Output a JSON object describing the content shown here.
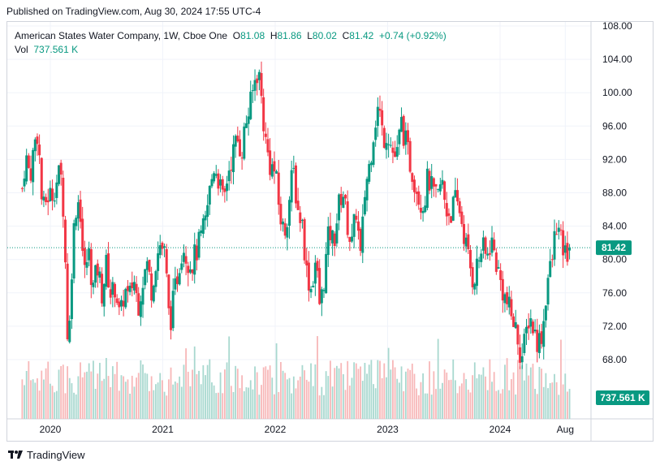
{
  "header": {
    "published": "Published on TradingView.com, Aug 30, 2024 17:55 UTC-4"
  },
  "legend": {
    "symbol": "American States Water Company, 1W, Cboe One",
    "o_label": "O",
    "o": "81.08",
    "h_label": "H",
    "h": "81.86",
    "l_label": "L",
    "l": "80.02",
    "c_label": "C",
    "c": "81.42",
    "change": "+0.74 (+0.92%)",
    "vol_label": "Vol",
    "vol": "737.561 K"
  },
  "footer": {
    "brand": "TradingView"
  },
  "colors": {
    "up": "#089981",
    "down": "#f23645",
    "vol_up": "#a8d8cf",
    "vol_down": "#f7b7b8",
    "grid": "#f0f3fa"
  },
  "chart_data": {
    "type": "candlestick",
    "title": "American States Water Company, 1W, Cboe One",
    "timeframe": "1W",
    "y_axis": {
      "side": "right",
      "range": [
        65.0,
        109.0
      ],
      "ticks": [
        "108.00",
        "104.00",
        "100.00",
        "96.00",
        "92.00",
        "88.00",
        "84.00",
        "80.00",
        "76.00",
        "72.00",
        "68.00"
      ]
    },
    "x_axis": {
      "range": [
        2019.75,
        2024.72
      ],
      "ticks": [
        {
          "label": "2020",
          "t": 2020.0
        },
        {
          "label": "2021",
          "t": 2021.0
        },
        {
          "label": "2022",
          "t": 2022.0
        },
        {
          "label": "2023",
          "t": 2023.0
        },
        {
          "label": "2024",
          "t": 2024.0
        },
        {
          "label": "Aug",
          "t": 2024.58
        }
      ]
    },
    "last_price": {
      "value": 81.42,
      "label": "81.42"
    },
    "last_volume": {
      "label": "737.561 K"
    },
    "close_path": [
      [
        2019.75,
        88.5
      ],
      [
        2019.78,
        92.5
      ],
      [
        2019.82,
        90.0
      ],
      [
        2019.86,
        94.0
      ],
      [
        2019.89,
        95.5
      ],
      [
        2019.93,
        85.5
      ],
      [
        2019.97,
        87.5
      ],
      [
        2020.02,
        88.0
      ],
      [
        2020.06,
        89.5
      ],
      [
        2020.09,
        90.5
      ],
      [
        2020.12,
        85.5
      ],
      [
        2020.16,
        68.0
      ],
      [
        2020.19,
        79.0
      ],
      [
        2020.22,
        86.0
      ],
      [
        2020.26,
        87.5
      ],
      [
        2020.3,
        78.0
      ],
      [
        2020.34,
        81.0
      ],
      [
        2020.38,
        76.5
      ],
      [
        2020.42,
        79.0
      ],
      [
        2020.46,
        76.0
      ],
      [
        2020.5,
        79.5
      ],
      [
        2020.54,
        75.5
      ],
      [
        2020.58,
        77.0
      ],
      [
        2020.62,
        72.5
      ],
      [
        2020.66,
        76.5
      ],
      [
        2020.7,
        75.0
      ],
      [
        2020.74,
        78.0
      ],
      [
        2020.78,
        74.5
      ],
      [
        2020.82,
        77.5
      ],
      [
        2020.86,
        79.5
      ],
      [
        2020.9,
        76.5
      ],
      [
        2020.94,
        80.0
      ],
      [
        2020.98,
        82.0
      ],
      [
        2021.02,
        80.5
      ],
      [
        2021.06,
        72.0
      ],
      [
        2021.1,
        75.5
      ],
      [
        2021.14,
        79.0
      ],
      [
        2021.18,
        82.0
      ],
      [
        2021.22,
        80.0
      ],
      [
        2021.26,
        79.5
      ],
      [
        2021.3,
        81.0
      ],
      [
        2021.34,
        82.5
      ],
      [
        2021.38,
        84.5
      ],
      [
        2021.42,
        88.5
      ],
      [
        2021.46,
        91.5
      ],
      [
        2021.5,
        89.5
      ],
      [
        2021.54,
        86.5
      ],
      [
        2021.58,
        90.5
      ],
      [
        2021.62,
        92.5
      ],
      [
        2021.66,
        94.5
      ],
      [
        2021.7,
        93.0
      ],
      [
        2021.74,
        96.5
      ],
      [
        2021.78,
        98.5
      ],
      [
        2021.82,
        101.5
      ],
      [
        2021.85,
        103.0
      ],
      [
        2021.88,
        99.0
      ],
      [
        2021.91,
        94.5
      ],
      [
        2021.95,
        91.5
      ],
      [
        2022.0,
        90.5
      ],
      [
        2022.04,
        85.5
      ],
      [
        2022.08,
        83.0
      ],
      [
        2022.12,
        86.5
      ],
      [
        2022.16,
        91.0
      ],
      [
        2022.2,
        86.0
      ],
      [
        2022.24,
        84.5
      ],
      [
        2022.28,
        78.5
      ],
      [
        2022.32,
        76.5
      ],
      [
        2022.36,
        80.0
      ],
      [
        2022.4,
        74.0
      ],
      [
        2022.44,
        78.5
      ],
      [
        2022.48,
        83.5
      ],
      [
        2022.52,
        82.0
      ],
      [
        2022.56,
        86.0
      ],
      [
        2022.6,
        88.5
      ],
      [
        2022.64,
        84.5
      ],
      [
        2022.68,
        81.5
      ],
      [
        2022.72,
        86.0
      ],
      [
        2022.76,
        80.0
      ],
      [
        2022.8,
        88.5
      ],
      [
        2022.84,
        91.5
      ],
      [
        2022.88,
        96.0
      ],
      [
        2022.92,
        98.5
      ],
      [
        2022.96,
        94.5
      ],
      [
        2023.0,
        95.5
      ],
      [
        2023.04,
        93.0
      ],
      [
        2023.08,
        92.0
      ],
      [
        2023.12,
        96.5
      ],
      [
        2023.16,
        94.0
      ],
      [
        2023.2,
        91.5
      ],
      [
        2023.24,
        89.5
      ],
      [
        2023.28,
        87.5
      ],
      [
        2023.32,
        86.5
      ],
      [
        2023.36,
        90.0
      ],
      [
        2023.4,
        88.0
      ],
      [
        2023.44,
        87.0
      ],
      [
        2023.48,
        89.5
      ],
      [
        2023.52,
        86.0
      ],
      [
        2023.56,
        85.5
      ],
      [
        2023.6,
        87.0
      ],
      [
        2023.64,
        86.0
      ],
      [
        2023.68,
        83.0
      ],
      [
        2023.72,
        80.0
      ],
      [
        2023.76,
        77.5
      ],
      [
        2023.8,
        79.5
      ],
      [
        2023.84,
        81.5
      ],
      [
        2023.88,
        80.0
      ],
      [
        2023.92,
        82.5
      ],
      [
        2023.96,
        80.0
      ],
      [
        2024.0,
        77.5
      ],
      [
        2024.04,
        75.5
      ],
      [
        2024.08,
        74.0
      ],
      [
        2024.12,
        72.5
      ],
      [
        2024.16,
        70.5
      ],
      [
        2024.19,
        68.0
      ],
      [
        2024.22,
        70.0
      ],
      [
        2024.26,
        73.5
      ],
      [
        2024.3,
        71.5
      ],
      [
        2024.34,
        70.0
      ],
      [
        2024.38,
        71.5
      ],
      [
        2024.42,
        77.5
      ],
      [
        2024.46,
        79.5
      ],
      [
        2024.5,
        84.5
      ],
      [
        2024.54,
        82.0
      ],
      [
        2024.58,
        80.5
      ],
      [
        2024.62,
        81.42
      ]
    ]
  }
}
